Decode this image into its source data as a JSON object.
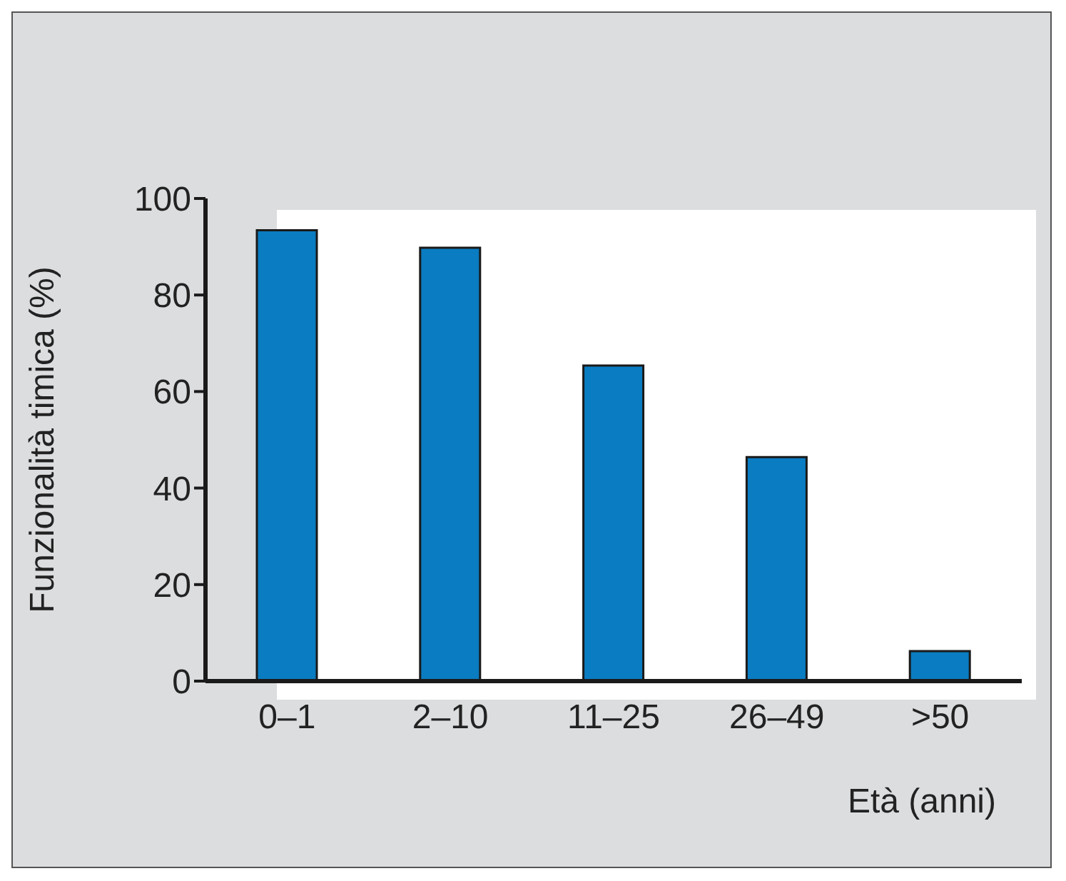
{
  "chart_data": {
    "type": "bar",
    "xlabel": "Età (anni)",
    "ylabel": "Funzionalità timica (%)",
    "categories": [
      "0–1",
      "2–10",
      "11–25",
      "26–49",
      ">50"
    ],
    "values": [
      93.4,
      89.8,
      65.4,
      46.4,
      6.2
    ],
    "color": "#0a7cc1",
    "ylim": [
      0,
      100
    ],
    "yticks": [
      0,
      20,
      40,
      60,
      80,
      100
    ],
    "grid": false,
    "legend": false
  }
}
